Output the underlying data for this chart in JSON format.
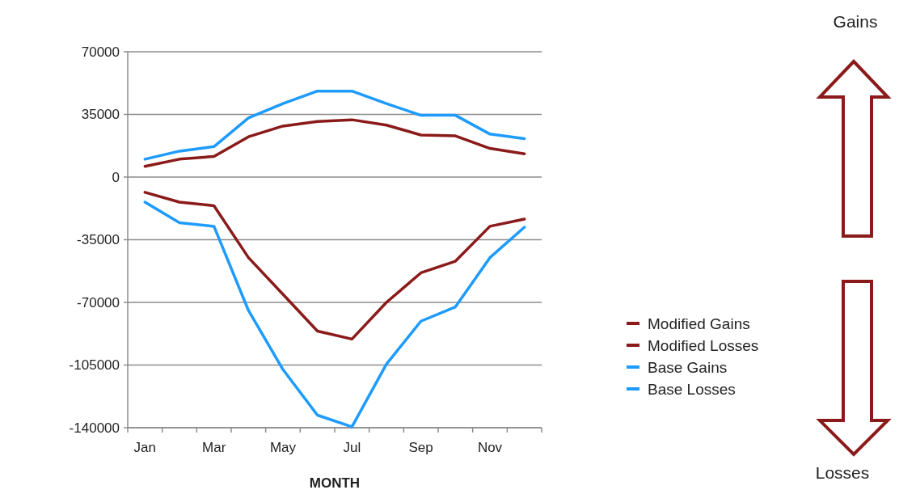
{
  "chart_data": {
    "type": "line",
    "xlabel": "MONTH",
    "categories": [
      "Jan",
      null,
      "Mar",
      null,
      "May",
      null,
      "Jul",
      null,
      "Sep",
      null,
      "Nov",
      null
    ],
    "series": [
      {
        "name": "Modified Gains",
        "color": "#8b1a1a",
        "values": [
          6000,
          10000,
          11500,
          22500,
          28500,
          31000,
          32000,
          29000,
          23500,
          23000,
          16000,
          13000
        ]
      },
      {
        "name": "Modified Losses",
        "color": "#8b1a1a",
        "values": [
          -8500,
          -14000,
          -16000,
          -45000,
          -65500,
          -86000,
          -90500,
          -70000,
          -53500,
          -47000,
          -27500,
          -23500
        ]
      },
      {
        "name": "Base Gains",
        "color": "#1e9bff",
        "values": [
          10000,
          14500,
          17000,
          33000,
          41000,
          48000,
          48000,
          41000,
          34500,
          34500,
          24000,
          21500
        ]
      },
      {
        "name": "Base Losses",
        "color": "#1e9bff",
        "values": [
          -14000,
          -25500,
          -27500,
          -74500,
          -107500,
          -133000,
          -139500,
          -104500,
          -80500,
          -72500,
          -45000,
          -28000
        ]
      }
    ],
    "ylim": [
      -140000,
      70000
    ],
    "yticks": [
      -140000,
      -105000,
      -70000,
      -35000,
      0,
      35000,
      70000
    ],
    "grid": "y",
    "legend": "right",
    "marker": "none",
    "line_style": "solid",
    "annotations": [
      "Gains",
      "Losses"
    ]
  }
}
